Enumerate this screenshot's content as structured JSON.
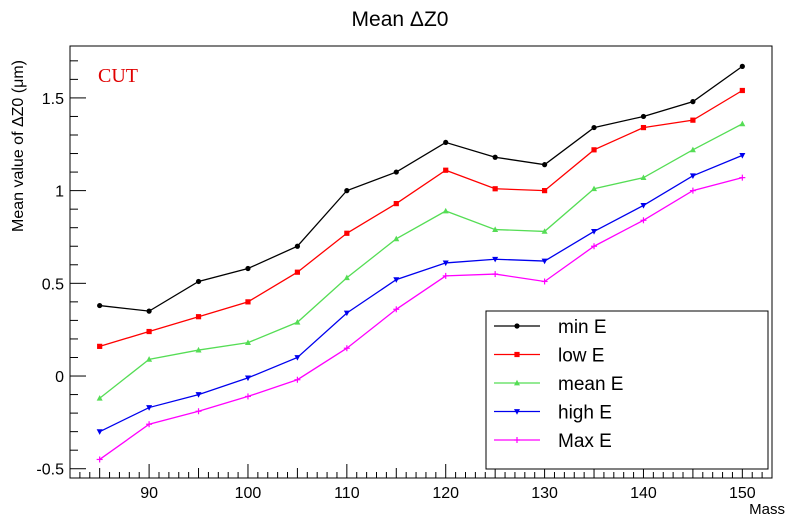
{
  "chart_data": {
    "type": "line",
    "title": "Mean ΔZ0",
    "xlabel": "Mass",
    "ylabel": "Mean value of ΔZ0 (μm)",
    "annotation": "CUT",
    "annotation_color": "#e00000",
    "xlim": [
      82,
      153
    ],
    "ylim": [
      -0.55,
      1.78
    ],
    "x_ticks": [
      90,
      100,
      110,
      120,
      130,
      140,
      150
    ],
    "x_tick_labels": [
      "90",
      "100",
      "110",
      "120",
      "130",
      "140",
      "150"
    ],
    "y_ticks": [
      -0.5,
      0,
      0.5,
      1,
      1.5
    ],
    "y_tick_labels": [
      "-0.5",
      "0",
      "0.5",
      "1",
      "1.5"
    ],
    "x": [
      85,
      90,
      95,
      100,
      105,
      110,
      115,
      120,
      125,
      130,
      135,
      140,
      145,
      150
    ],
    "legend_position": "bottom-right",
    "series": [
      {
        "name": "min E",
        "color": "#000000",
        "marker": "circle",
        "values": [
          0.38,
          0.35,
          0.51,
          0.58,
          0.7,
          1.0,
          1.1,
          1.26,
          1.18,
          1.14,
          1.34,
          1.4,
          1.48,
          1.67
        ]
      },
      {
        "name": "low E",
        "color": "#ff0000",
        "marker": "square",
        "values": [
          0.16,
          0.24,
          0.32,
          0.4,
          0.56,
          0.77,
          0.93,
          1.11,
          1.01,
          1.0,
          1.22,
          1.34,
          1.38,
          1.54
        ]
      },
      {
        "name": "mean E",
        "color": "#55dd55",
        "marker": "triangle-up",
        "values": [
          -0.12,
          0.09,
          0.14,
          0.18,
          0.29,
          0.53,
          0.74,
          0.89,
          0.79,
          0.78,
          1.01,
          1.07,
          1.22,
          1.36
        ]
      },
      {
        "name": "high E",
        "color": "#0000ee",
        "marker": "triangle-down",
        "values": [
          -0.3,
          -0.17,
          -0.1,
          -0.01,
          0.1,
          0.34,
          0.52,
          0.61,
          0.63,
          0.62,
          0.78,
          0.92,
          1.08,
          1.19
        ]
      },
      {
        "name": "Max E",
        "color": "#ff00ff",
        "marker": "star",
        "values": [
          -0.45,
          -0.26,
          -0.19,
          -0.11,
          -0.02,
          0.15,
          0.36,
          0.54,
          0.55,
          0.51,
          0.7,
          0.84,
          1.0,
          1.07
        ]
      }
    ]
  }
}
